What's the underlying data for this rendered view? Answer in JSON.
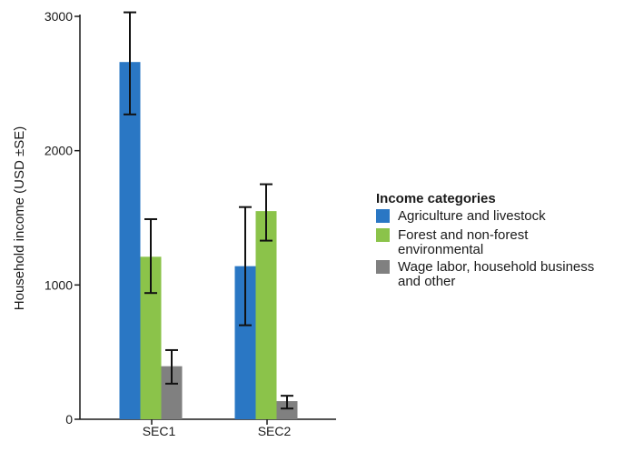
{
  "chart_data": {
    "type": "bar",
    "title": "",
    "xlabel": "",
    "ylabel": "Household income (USD ±SE)",
    "ylim": [
      0,
      3000
    ],
    "yticks": [
      0,
      1000,
      2000,
      3000
    ],
    "grid": false,
    "legend_position": "right",
    "categories": [
      "SEC1",
      "SEC2"
    ],
    "legend": {
      "title": "Income categories",
      "entries": [
        {
          "lines": [
            "Agriculture and livestock"
          ],
          "color": "#2a77c4"
        },
        {
          "lines": [
            "Forest and non-forest",
            "environmental"
          ],
          "color": "#8bc34a"
        },
        {
          "lines": [
            "Wage labor, household business",
            "and other"
          ],
          "color": "#808080"
        }
      ]
    },
    "series": [
      {
        "name": "Agriculture and livestock",
        "color": "#2a77c4",
        "values": [
          2660,
          1140
        ],
        "errors": [
          [
            2270,
            3030
          ],
          [
            700,
            1580
          ]
        ]
      },
      {
        "name": "Forest and non-forest environmental",
        "color": "#8bc34a",
        "values": [
          1210,
          1550
        ],
        "errors": [
          [
            940,
            1490
          ],
          [
            1330,
            1750
          ]
        ]
      },
      {
        "name": "Wage labor, household business and other",
        "color": "#808080",
        "values": [
          395,
          135
        ],
        "errors": [
          [
            265,
            515
          ],
          [
            80,
            175
          ]
        ]
      }
    ]
  }
}
